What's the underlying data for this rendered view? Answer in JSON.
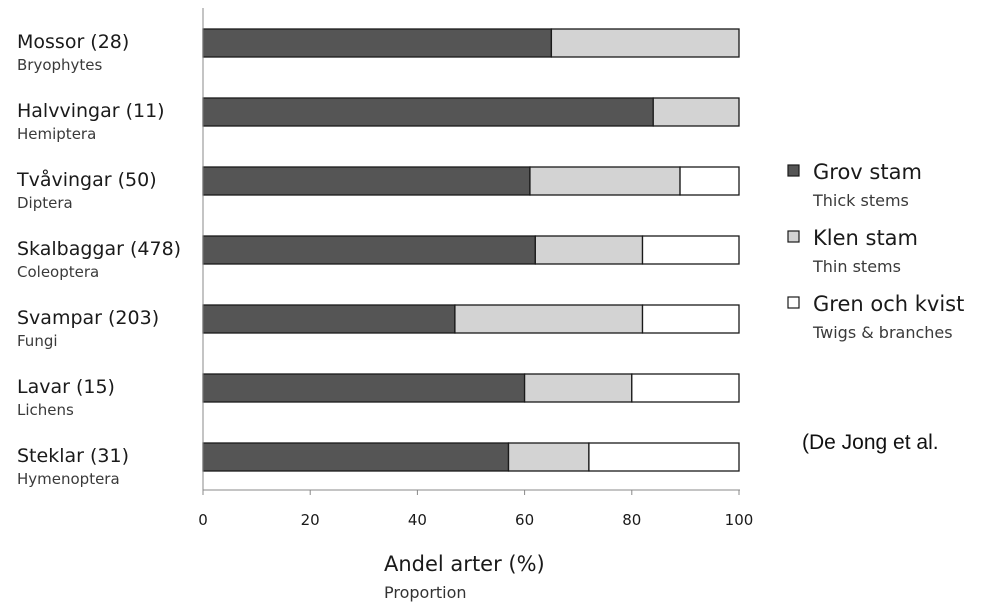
{
  "chart_data": {
    "type": "bar",
    "orientation": "horizontal",
    "stacked": true,
    "categories": [
      {
        "label": "Mossor",
        "count": "(28)",
        "sublabel": "Bryophytes"
      },
      {
        "label": "Halvvingar",
        "count": "(11)",
        "sublabel": "Hemiptera"
      },
      {
        "label": "Tvåvingar",
        "count": "(50)",
        "sublabel": "Diptera"
      },
      {
        "label": "Skalbaggar",
        "count": "(478)",
        "sublabel": "Coleoptera"
      },
      {
        "label": "Svampar",
        "count": "(203)",
        "sublabel": "Fungi"
      },
      {
        "label": "Lavar",
        "count": "(15)",
        "sublabel": "Lichens"
      },
      {
        "label": "Steklar",
        "count": "(31)",
        "sublabel": "Hymenoptera"
      }
    ],
    "series": [
      {
        "name": "Grov stam",
        "subname": "Thick stems",
        "color": "#555555",
        "values": [
          65,
          84,
          61,
          62,
          47,
          60,
          57
        ]
      },
      {
        "name": "Klen stam",
        "subname": "Thin stems",
        "color": "#d3d3d3",
        "values": [
          35,
          16,
          28,
          20,
          35,
          20,
          15
        ]
      },
      {
        "name": "Gren och kvist",
        "subname": "Twigs & branches",
        "color": "#ffffff",
        "values": [
          0,
          0,
          11,
          18,
          18,
          20,
          28
        ]
      }
    ],
    "xlim": [
      0,
      100
    ],
    "xticks": [
      "0",
      "20",
      "40",
      "60",
      "80",
      "100"
    ],
    "xlabel": "Andel arter (%)",
    "xlabel_sub": "Proportion",
    "legend_position": "right",
    "grid": false,
    "annotation": "(De Jong et al."
  }
}
